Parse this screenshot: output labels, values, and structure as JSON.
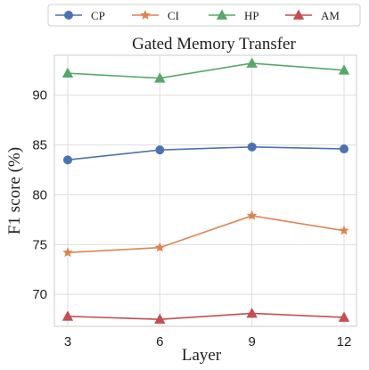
{
  "chart_data": {
    "type": "line",
    "title": "Gated Memory Transfer",
    "xlabel": "Layer",
    "ylabel": "F1 score (%)",
    "x": [
      3,
      6,
      9,
      12
    ],
    "xticks": [
      "3",
      "6",
      "9",
      "12"
    ],
    "yticks": [
      "70",
      "75",
      "80",
      "85",
      "90"
    ],
    "ylim": [
      66.8,
      94.0
    ],
    "grid": true,
    "legend_position": "top",
    "series": [
      {
        "name": "CP",
        "values": [
          83.5,
          84.5,
          84.8,
          84.6
        ],
        "color": "#4c72b0",
        "marker": "circle"
      },
      {
        "name": "CI",
        "values": [
          74.2,
          74.7,
          77.9,
          76.4
        ],
        "color": "#dd8452",
        "marker": "star"
      },
      {
        "name": "HP",
        "values": [
          92.2,
          91.7,
          93.2,
          92.5
        ],
        "color": "#55a868",
        "marker": "triangle-up"
      },
      {
        "name": "AM",
        "values": [
          67.8,
          67.5,
          68.1,
          67.7
        ],
        "color": "#c44e52",
        "marker": "triangle-up"
      }
    ]
  }
}
